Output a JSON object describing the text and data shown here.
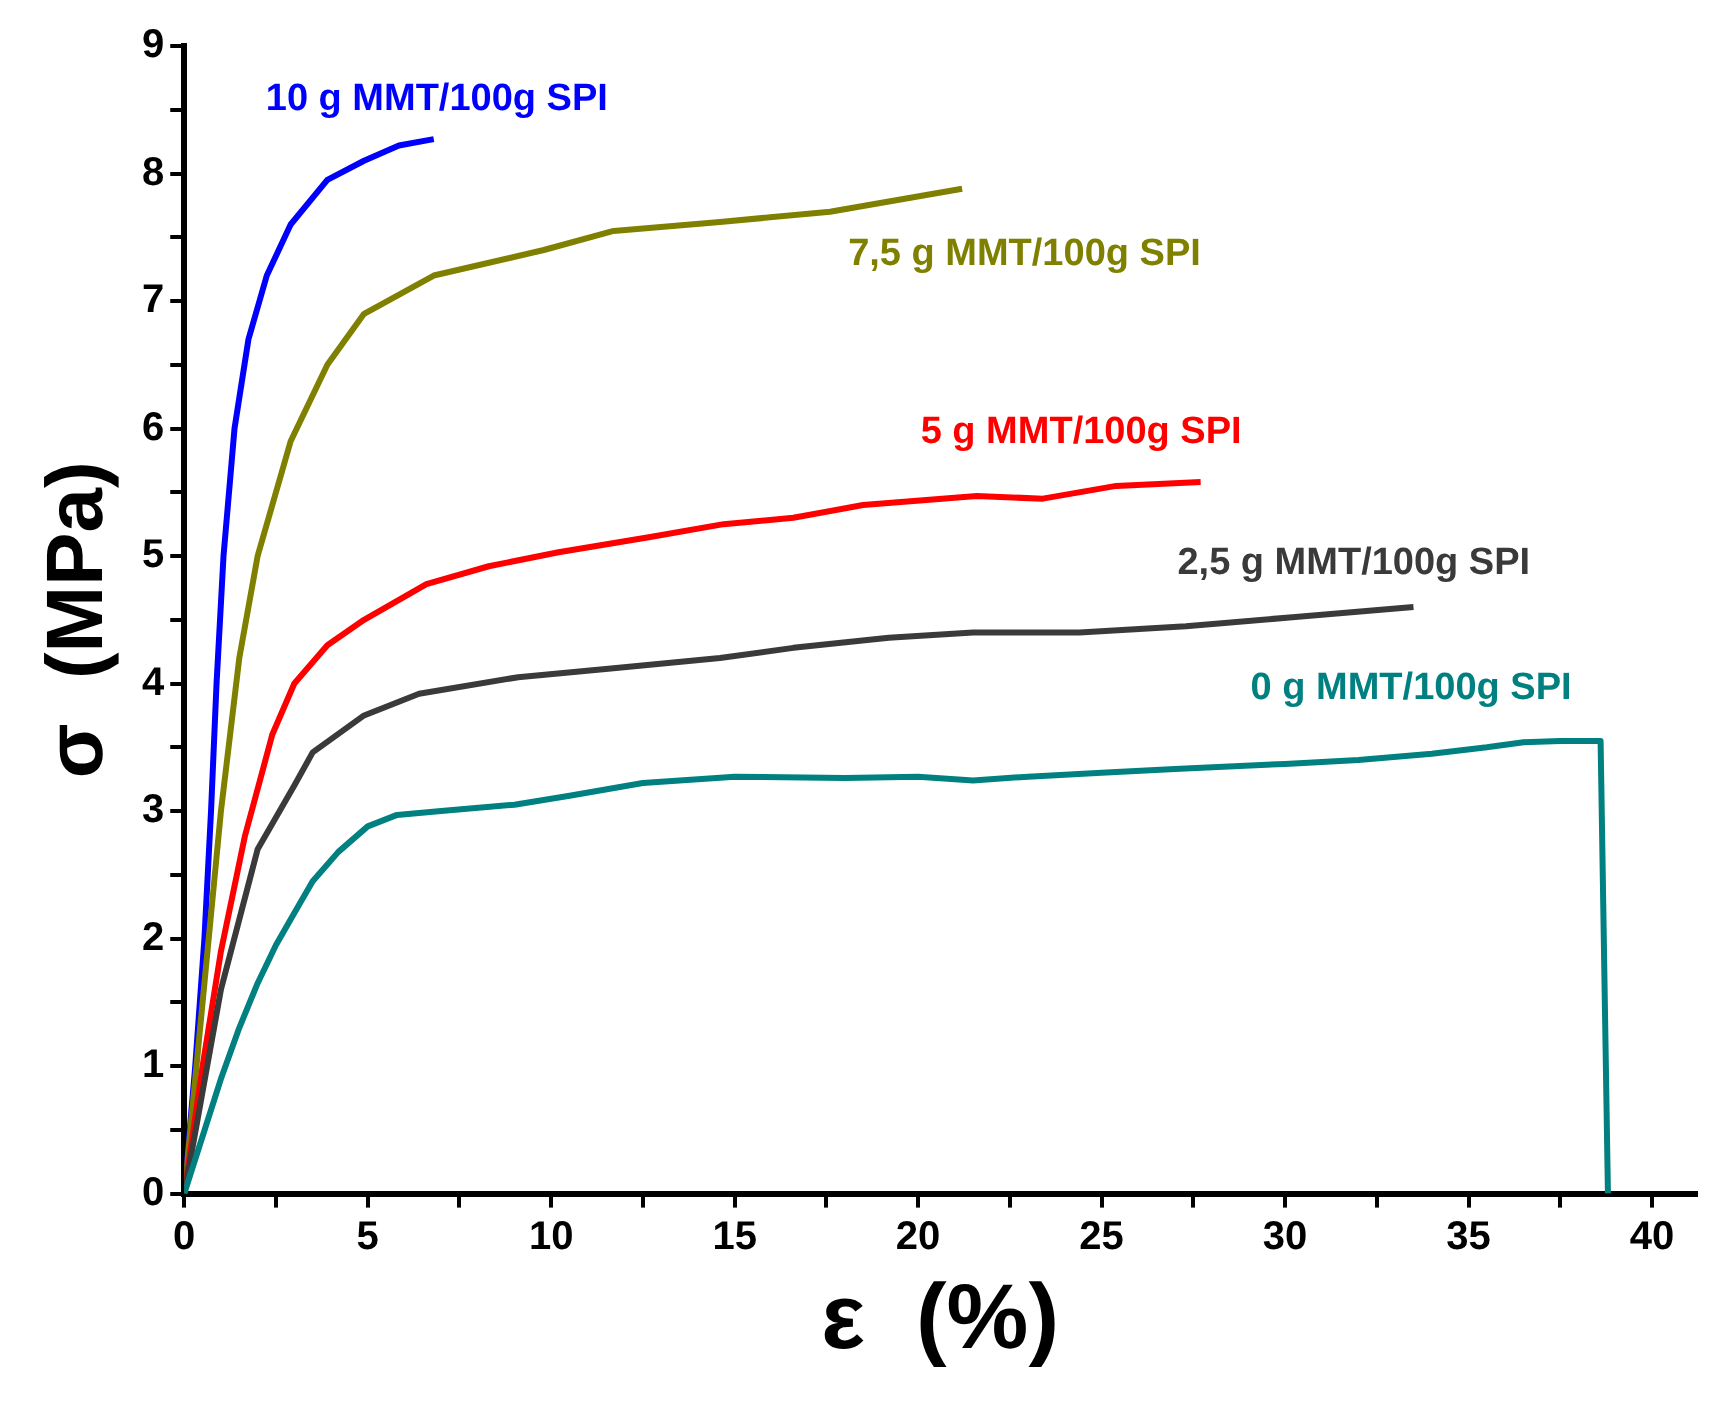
{
  "chart_data": {
    "type": "line",
    "xlabel": "ε  (%)",
    "ylabel": "σ  (MPa)",
    "xlim": [
      0,
      41.2
    ],
    "ylim": [
      0,
      9
    ],
    "xticks": [
      0,
      {
        "value": 2.5,
        "label": null
      },
      5,
      {
        "value": 7.5,
        "label": null
      },
      10,
      {
        "value": 12.5,
        "label": null
      },
      15,
      {
        "value": 17.5,
        "label": null
      },
      20,
      {
        "value": 22.5,
        "label": null
      },
      25,
      {
        "value": 27.5,
        "label": null
      },
      30,
      {
        "value": 32.5,
        "label": null
      },
      35,
      {
        "value": 37.5,
        "label": null
      },
      40
    ],
    "yticks": [
      0,
      {
        "value": 0.5,
        "label": null
      },
      1,
      {
        "value": 1.5,
        "label": null
      },
      2,
      {
        "value": 2.5,
        "label": null
      },
      3,
      {
        "value": 3.5,
        "label": null
      },
      4,
      {
        "value": 4.5,
        "label": null
      },
      5,
      {
        "value": 5.5,
        "label": null
      },
      6,
      {
        "value": 6.5,
        "label": null
      },
      7,
      {
        "value": 7.5,
        "label": null
      },
      8,
      {
        "value": 8.5,
        "label": null
      },
      9
    ],
    "grid": false,
    "legend": false,
    "marker": "none",
    "line_style": "solid",
    "series": [
      {
        "name": "0 g MMT/100g SPI",
        "color": "#008080",
        "x": [
          0,
          0.5,
          1,
          1.5,
          2,
          2.5,
          3,
          3.5,
          4.2,
          5,
          5.8,
          7,
          9,
          10.5,
          12.5,
          15,
          18,
          20,
          21.5,
          23,
          25,
          27,
          30,
          32,
          34,
          35.5,
          36.5,
          37.5,
          38.6,
          38.8
        ],
        "values": [
          0,
          0.45,
          0.9,
          1.3,
          1.65,
          1.95,
          2.2,
          2.45,
          2.68,
          2.88,
          2.97,
          3.0,
          3.05,
          3.12,
          3.22,
          3.27,
          3.26,
          3.27,
          3.24,
          3.27,
          3.3,
          3.33,
          3.37,
          3.4,
          3.45,
          3.5,
          3.54,
          3.55,
          3.55,
          0
        ]
      },
      {
        "name": "2,5 g MMT/100g SPI",
        "color": "#3a3a3a",
        "x": [
          0,
          0.5,
          1,
          2,
          3,
          3.5,
          4.9,
          6.4,
          9.1,
          11.7,
          14.6,
          16.6,
          19.2,
          21.5,
          24.4,
          27.3,
          30.2,
          33.5
        ],
        "values": [
          0,
          0.8,
          1.6,
          2.7,
          3.2,
          3.46,
          3.75,
          3.92,
          4.05,
          4.12,
          4.2,
          4.28,
          4.36,
          4.4,
          4.4,
          4.45,
          4.52,
          4.6
        ]
      },
      {
        "name": "5 g MMT/100g SPI",
        "color": "#ff0000",
        "x": [
          0,
          0.5,
          1,
          1.65,
          2.4,
          3,
          3.9,
          4.9,
          6.6,
          8.3,
          10.2,
          12.7,
          14.7,
          16.6,
          18.5,
          21.6,
          23.4,
          25.4,
          27.7
        ],
        "values": [
          0,
          1,
          1.9,
          2.8,
          3.6,
          4.0,
          4.3,
          4.5,
          4.78,
          4.92,
          5.03,
          5.15,
          5.25,
          5.3,
          5.4,
          5.47,
          5.45,
          5.55,
          5.58
        ]
      },
      {
        "name": "7,5 g MMT/100g SPI",
        "color": "#808000",
        "x": [
          0,
          0.5,
          1,
          1.5,
          2,
          2.9,
          3.9,
          4.9,
          6.8,
          9.8,
          11.7,
          14.6,
          17.6,
          21.2
        ],
        "values": [
          0,
          1.5,
          3,
          4.2,
          5,
          5.9,
          6.5,
          6.9,
          7.2,
          7.4,
          7.55,
          7.62,
          7.7,
          7.88
        ]
      },
      {
        "name": "10 g MMT/100g SPI",
        "color": "#0000ff",
        "x": [
          0,
          0.3,
          0.55,
          0.73,
          0.88,
          1.07,
          1.37,
          1.75,
          2.25,
          2.9,
          3.9,
          4.9,
          5.85,
          6.8
        ],
        "values": [
          0,
          1,
          2,
          3,
          4,
          5,
          6,
          6.7,
          7.2,
          7.6,
          7.95,
          8.1,
          8.22,
          8.27
        ]
      }
    ]
  }
}
